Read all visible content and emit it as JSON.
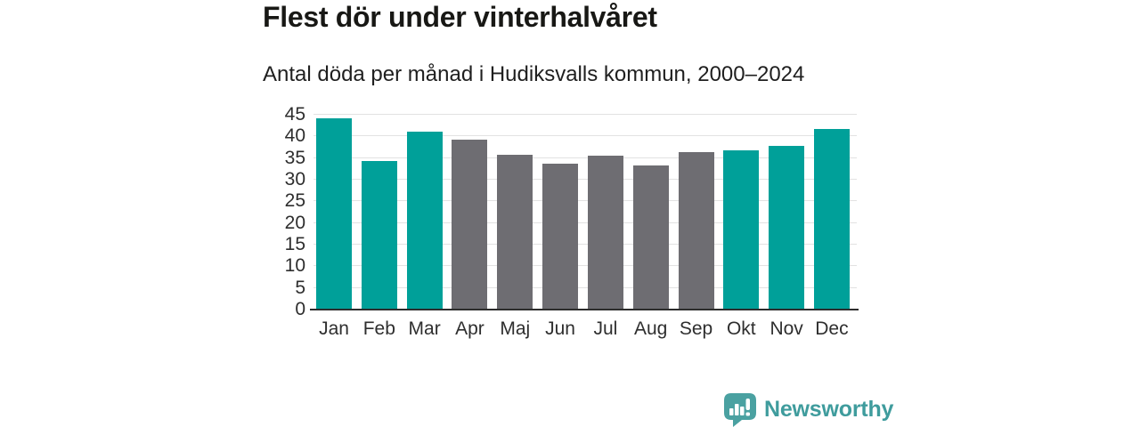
{
  "header": {
    "title": "Flest dör under vinterhalvåret",
    "subtitle": "Antal döda per månad i Hudiksvalls kommun, 2000–2024"
  },
  "chart_data": {
    "type": "bar",
    "categories": [
      "Jan",
      "Feb",
      "Mar",
      "Apr",
      "Maj",
      "Jun",
      "Jul",
      "Aug",
      "Sep",
      "Okt",
      "Nov",
      "Dec"
    ],
    "values": [
      44.2,
      34.3,
      41.1,
      39.3,
      35.8,
      33.8,
      35.5,
      33.2,
      36.3,
      36.7,
      37.8,
      41.8
    ],
    "bar_colors": [
      "teal",
      "teal",
      "teal",
      "gray",
      "gray",
      "gray",
      "gray",
      "gray",
      "gray",
      "teal",
      "teal",
      "teal"
    ],
    "palette": {
      "teal": "#00a099",
      "gray": "#6e6d72"
    },
    "title": "Flest dör under vinterhalvåret",
    "subtitle": "Antal döda per månad i Hudiksvalls kommun, 2000–2024",
    "xlabel": "",
    "ylabel": "",
    "ylim": [
      0,
      45
    ],
    "yticks": [
      0,
      5,
      10,
      15,
      20,
      25,
      30,
      35,
      40,
      45
    ],
    "grid": "horizontal",
    "legend": "none"
  },
  "footer": {
    "brand": "Newsworthy",
    "brand_color": "#3f9c9d",
    "logo_color": "#4aa1a1"
  }
}
